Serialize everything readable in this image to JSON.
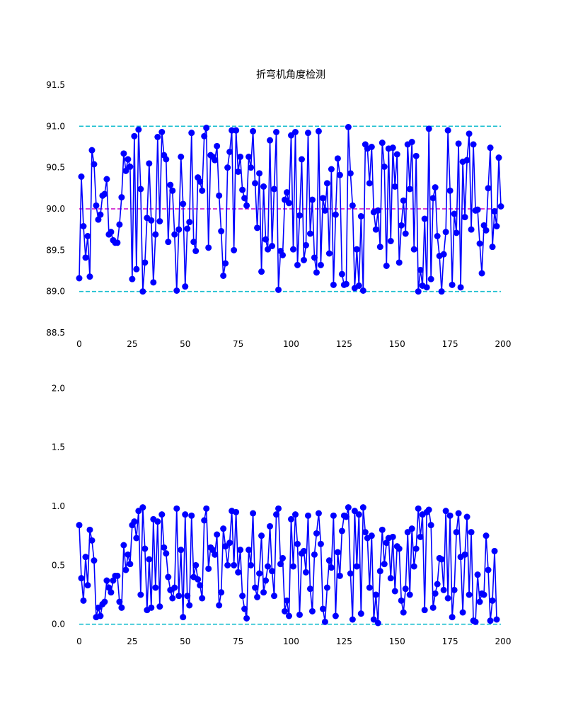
{
  "colors": {
    "series": "#0000ff",
    "upper_lower": "#17becf",
    "center": "#c800c8",
    "tick": "#000000",
    "background": "#ffffff"
  },
  "chart_data": [
    {
      "type": "line",
      "title": "折弯机角度检测",
      "xlabel": "",
      "ylabel": "",
      "xlim": [
        -4,
        203
      ],
      "ylim": [
        88.5,
        91.5
      ],
      "xticks": [
        0,
        25,
        50,
        75,
        100,
        125,
        150,
        175,
        200
      ],
      "yticks": [
        88.5,
        89.0,
        89.5,
        90.0,
        90.5,
        91.0,
        91.5
      ],
      "ytick_labels": [
        "88.5",
        "89.0",
        "89.5",
        "90.0",
        "90.5",
        "91.0",
        "91.5"
      ],
      "grid": false,
      "reference_lines": [
        {
          "y": 91.0,
          "style": "dashed",
          "color_key": "upper_lower"
        },
        {
          "y": 90.0,
          "style": "dashed",
          "color_key": "center"
        },
        {
          "y": 89.0,
          "style": "dashed",
          "color_key": "upper_lower"
        }
      ],
      "series": [
        {
          "marker": "circle",
          "values": [
            89.16,
            90.39,
            89.79,
            89.41,
            89.67,
            89.18,
            90.71,
            90.54,
            90.04,
            89.87,
            89.93,
            90.16,
            90.18,
            90.36,
            89.69,
            89.72,
            89.62,
            89.59,
            89.59,
            89.81,
            90.14,
            90.67,
            90.46,
            90.6,
            90.51,
            89.15,
            90.88,
            89.27,
            90.96,
            90.24,
            89.0,
            89.35,
            89.89,
            90.55,
            89.86,
            89.11,
            89.69,
            90.87,
            89.85,
            90.93,
            90.65,
            90.6,
            89.6,
            90.29,
            90.22,
            89.69,
            89.01,
            89.75,
            90.63,
            90.06,
            89.06,
            89.76,
            89.84,
            90.92,
            89.6,
            89.49,
            90.38,
            90.33,
            90.22,
            90.88,
            90.98,
            89.53,
            90.65,
            90.63,
            90.59,
            90.76,
            90.16,
            89.73,
            89.19,
            89.34,
            90.5,
            90.69,
            90.95,
            89.5,
            90.95,
            90.45,
            90.63,
            90.23,
            90.13,
            90.04,
            90.63,
            90.5,
            90.94,
            90.31,
            89.77,
            90.43,
            89.24,
            90.27,
            89.63,
            89.51,
            90.83,
            89.55,
            90.24,
            90.93,
            89.02,
            89.49,
            89.44,
            90.11,
            90.2,
            90.07,
            90.89,
            89.51,
            90.93,
            89.32,
            89.92,
            90.6,
            89.38,
            89.56,
            90.92,
            89.7,
            90.11,
            89.41,
            89.23,
            90.94,
            89.32,
            90.13,
            89.98,
            90.31,
            89.46,
            90.48,
            89.08,
            89.93,
            90.61,
            90.41,
            89.21,
            89.08,
            89.09,
            90.99,
            90.43,
            90.04,
            89.04,
            89.51,
            89.07,
            89.91,
            89.01,
            90.78,
            90.73,
            90.31,
            90.75,
            89.96,
            89.75,
            89.98,
            89.54,
            90.8,
            90.51,
            89.31,
            90.73,
            89.61,
            90.74,
            90.27,
            90.66,
            89.35,
            89.8,
            90.1,
            89.7,
            90.78,
            90.24,
            90.81,
            89.51,
            90.64,
            89.0,
            89.26,
            89.07,
            89.88,
            89.05,
            90.97,
            89.15,
            90.13,
            90.26,
            89.67,
            89.43,
            89.0,
            89.45,
            89.72,
            90.95,
            90.22,
            89.08,
            89.94,
            89.71,
            90.79,
            89.05,
            90.57,
            89.9,
            90.59,
            90.91,
            89.75,
            90.78,
            89.98,
            89.99,
            89.58,
            89.22,
            89.8,
            89.74,
            90.25,
            90.74,
            89.54,
            89.97,
            89.79,
            90.62,
            90.03
          ]
        }
      ]
    },
    {
      "type": "line",
      "title": "",
      "xlabel": "",
      "ylabel": "",
      "xlim": [
        -4,
        203
      ],
      "ylim": [
        -0.05,
        2.05
      ],
      "xticks": [
        0,
        25,
        50,
        75,
        100,
        125,
        150,
        175,
        200
      ],
      "yticks": [
        0.0,
        0.5,
        1.0,
        1.5,
        2.0
      ],
      "ytick_labels": [
        "0.0",
        "0.5",
        "1.0",
        "1.5",
        "2.0"
      ],
      "grid": false,
      "reference_lines": [
        {
          "y": 0.0,
          "style": "dashed",
          "color_key": "upper_lower"
        }
      ],
      "series": [
        {
          "marker": "circle",
          "values": [
            0.84,
            0.39,
            0.2,
            0.57,
            0.33,
            0.8,
            0.71,
            0.54,
            0.06,
            0.14,
            0.07,
            0.17,
            0.19,
            0.37,
            0.31,
            0.27,
            0.37,
            0.41,
            0.41,
            0.19,
            0.14,
            0.67,
            0.46,
            0.59,
            0.51,
            0.84,
            0.87,
            0.73,
            0.96,
            0.25,
            0.99,
            0.64,
            0.12,
            0.55,
            0.14,
            0.89,
            0.31,
            0.87,
            0.15,
            0.93,
            0.65,
            0.6,
            0.4,
            0.29,
            0.22,
            0.31,
            0.98,
            0.24,
            0.63,
            0.06,
            0.93,
            0.24,
            0.16,
            0.92,
            0.4,
            0.5,
            0.38,
            0.33,
            0.22,
            0.88,
            0.98,
            0.47,
            0.65,
            0.63,
            0.59,
            0.76,
            0.16,
            0.27,
            0.81,
            0.66,
            0.5,
            0.69,
            0.96,
            0.5,
            0.95,
            0.44,
            0.63,
            0.24,
            0.13,
            0.05,
            0.63,
            0.5,
            0.94,
            0.31,
            0.23,
            0.43,
            0.75,
            0.27,
            0.37,
            0.49,
            0.83,
            0.45,
            0.24,
            0.93,
            0.98,
            0.51,
            0.56,
            0.11,
            0.2,
            0.07,
            0.89,
            0.49,
            0.93,
            0.68,
            0.08,
            0.6,
            0.62,
            0.44,
            0.92,
            0.3,
            0.11,
            0.59,
            0.77,
            0.94,
            0.68,
            0.13,
            0.02,
            0.31,
            0.54,
            0.48,
            0.92,
            0.07,
            0.61,
            0.41,
            0.79,
            0.92,
            0.91,
            0.99,
            0.43,
            0.04,
            0.96,
            0.49,
            0.93,
            0.09,
            0.99,
            0.78,
            0.73,
            0.31,
            0.75,
            0.04,
            0.25,
            0.01,
            0.45,
            0.8,
            0.51,
            0.69,
            0.73,
            0.39,
            0.74,
            0.28,
            0.66,
            0.64,
            0.2,
            0.1,
            0.3,
            0.78,
            0.25,
            0.81,
            0.49,
            0.64,
            0.98,
            0.74,
            0.93,
            0.12,
            0.95,
            0.97,
            0.84,
            0.14,
            0.26,
            0.34,
            0.56,
            0.55,
            0.29,
            0.96,
            0.22,
            0.92,
            0.06,
            0.29,
            0.78,
            0.94,
            0.57,
            0.1,
            0.59,
            0.91,
            0.25,
            0.78,
            0.03,
            0.02,
            0.42,
            0.19,
            0.26,
            0.25,
            0.75,
            0.46,
            0.03,
            0.2,
            0.62,
            0.04
          ]
        }
      ]
    }
  ]
}
